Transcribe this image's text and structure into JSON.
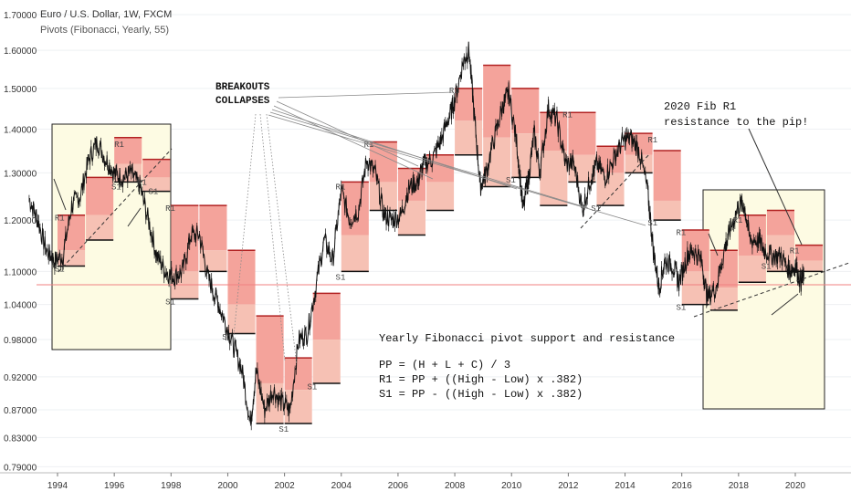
{
  "header": {
    "title": "Euro / U.S. Dollar, 1W, FXCM",
    "indicator": "Pivots (Fibonacci, Yearly, 55)"
  },
  "annotations": {
    "breakouts_line1": "BREAKOUTS",
    "breakouts_line2": "COLLAPSES",
    "fib_r1_line1": "2020 Fib R1",
    "fib_r1_line2": "resistance to the pip!",
    "formula_title": "Yearly Fibonacci pivot support and resistance",
    "formula_pp": "PP = (H + L + C) / 3",
    "formula_r1": "R1 = PP + ((High - Low) x .382)",
    "formula_s1": "S1 = PP - ((High - Low) x .382)"
  },
  "colors": {
    "resistance_fill": "#f4a39b",
    "support_fill": "#f6c1b4",
    "highlight_box": "#fdfbe3",
    "price_line": "#111111",
    "current_price_line": "#f08080"
  },
  "chart_data": {
    "type": "line",
    "title": "Euro / U.S. Dollar, 1W, FXCM",
    "x_ticks": [
      "1994",
      "1996",
      "1998",
      "2000",
      "2002",
      "2004",
      "2006",
      "2008",
      "2010",
      "2012",
      "2014",
      "2016",
      "2018",
      "2020"
    ],
    "y_ticks": [
      "0.79000",
      "0.83000",
      "0.87000",
      "0.92000",
      "0.98000",
      "1.04000",
      "1.10000",
      "1.20000",
      "1.30000",
      "1.40000",
      "1.50000",
      "1.60000",
      "1.70000"
    ],
    "ylim": [
      0.775,
      1.73
    ],
    "xlim": [
      1993.0,
      2021.6
    ],
    "current_price": 1.082,
    "price_path": [
      [
        1993.0,
        1.245
      ],
      [
        1993.3,
        1.2
      ],
      [
        1993.6,
        1.14
      ],
      [
        1993.9,
        1.12
      ],
      [
        1994.2,
        1.13
      ],
      [
        1994.5,
        1.23
      ],
      [
        1994.8,
        1.25
      ],
      [
        1995.1,
        1.33
      ],
      [
        1995.4,
        1.37
      ],
      [
        1995.7,
        1.33
      ],
      [
        1996.0,
        1.3
      ],
      [
        1996.3,
        1.29
      ],
      [
        1996.6,
        1.3
      ],
      [
        1996.9,
        1.27
      ],
      [
        1997.2,
        1.2
      ],
      [
        1997.5,
        1.13
      ],
      [
        1997.8,
        1.1
      ],
      [
        1998.1,
        1.09
      ],
      [
        1998.4,
        1.1
      ],
      [
        1998.7,
        1.17
      ],
      [
        1999.0,
        1.17
      ],
      [
        1999.3,
        1.09
      ],
      [
        1999.6,
        1.05
      ],
      [
        1999.9,
        1.01
      ],
      [
        2000.2,
        0.97
      ],
      [
        2000.5,
        0.93
      ],
      [
        2000.8,
        0.85
      ],
      [
        2001.0,
        0.93
      ],
      [
        2001.3,
        0.87
      ],
      [
        2001.6,
        0.9
      ],
      [
        2001.9,
        0.88
      ],
      [
        2002.2,
        0.87
      ],
      [
        2002.5,
        0.98
      ],
      [
        2002.8,
        0.99
      ],
      [
        2003.1,
        1.07
      ],
      [
        2003.4,
        1.16
      ],
      [
        2003.7,
        1.12
      ],
      [
        2004.0,
        1.26
      ],
      [
        2004.3,
        1.2
      ],
      [
        2004.6,
        1.22
      ],
      [
        2004.9,
        1.33
      ],
      [
        2005.2,
        1.3
      ],
      [
        2005.5,
        1.21
      ],
      [
        2005.8,
        1.2
      ],
      [
        2006.1,
        1.21
      ],
      [
        2006.4,
        1.27
      ],
      [
        2006.7,
        1.28
      ],
      [
        2006.9,
        1.32
      ],
      [
        2007.2,
        1.33
      ],
      [
        2007.5,
        1.37
      ],
      [
        2007.8,
        1.43
      ],
      [
        2008.0,
        1.47
      ],
      [
        2008.3,
        1.57
      ],
      [
        2008.5,
        1.6
      ],
      [
        2008.7,
        1.42
      ],
      [
        2008.9,
        1.27
      ],
      [
        2009.1,
        1.3
      ],
      [
        2009.4,
        1.38
      ],
      [
        2009.7,
        1.46
      ],
      [
        2009.9,
        1.49
      ],
      [
        2010.2,
        1.36
      ],
      [
        2010.4,
        1.22
      ],
      [
        2010.6,
        1.29
      ],
      [
        2010.8,
        1.39
      ],
      [
        2011.0,
        1.3
      ],
      [
        2011.3,
        1.45
      ],
      [
        2011.6,
        1.42
      ],
      [
        2011.9,
        1.32
      ],
      [
        2012.2,
        1.32
      ],
      [
        2012.5,
        1.22
      ],
      [
        2012.8,
        1.29
      ],
      [
        2013.0,
        1.32
      ],
      [
        2013.3,
        1.29
      ],
      [
        2013.6,
        1.33
      ],
      [
        2013.9,
        1.37
      ],
      [
        2014.2,
        1.38
      ],
      [
        2014.5,
        1.35
      ],
      [
        2014.8,
        1.26
      ],
      [
        2015.0,
        1.14
      ],
      [
        2015.2,
        1.07
      ],
      [
        2015.4,
        1.12
      ],
      [
        2015.7,
        1.11
      ],
      [
        2015.9,
        1.08
      ],
      [
        2016.2,
        1.13
      ],
      [
        2016.4,
        1.14
      ],
      [
        2016.7,
        1.12
      ],
      [
        2016.9,
        1.05
      ],
      [
        2017.2,
        1.07
      ],
      [
        2017.5,
        1.14
      ],
      [
        2017.7,
        1.18
      ],
      [
        2018.0,
        1.23
      ],
      [
        2018.2,
        1.23
      ],
      [
        2018.4,
        1.16
      ],
      [
        2018.7,
        1.16
      ],
      [
        2018.9,
        1.14
      ],
      [
        2019.2,
        1.13
      ],
      [
        2019.5,
        1.13
      ],
      [
        2019.8,
        1.1
      ],
      [
        2020.0,
        1.11
      ],
      [
        2020.2,
        1.08
      ],
      [
        2020.3,
        1.09
      ]
    ],
    "pivot_years": [
      {
        "year": 1994,
        "r1": 1.21,
        "pp": 1.14,
        "s1": 1.11
      },
      {
        "year": 1995,
        "r1": 1.29,
        "pp": 1.21,
        "s1": 1.16
      },
      {
        "year": 1996,
        "r1": 1.38,
        "pp": 1.32,
        "s1": 1.28
      },
      {
        "year": 1997,
        "r1": 1.33,
        "pp": 1.29,
        "s1": 1.26
      },
      {
        "year": 1998,
        "r1": 1.23,
        "pp": 1.1,
        "s1": 1.05
      },
      {
        "year": 1999,
        "r1": 1.23,
        "pp": 1.14,
        "s1": 1.1
      },
      {
        "year": 2000,
        "r1": 1.14,
        "pp": 1.04,
        "s1": 0.99
      },
      {
        "year": 2001,
        "r1": 1.02,
        "pp": 0.91,
        "s1": 0.85
      },
      {
        "year": 2002,
        "r1": 0.95,
        "pp": 0.9,
        "s1": 0.85
      },
      {
        "year": 2003,
        "r1": 1.06,
        "pp": 0.98,
        "s1": 0.91
      },
      {
        "year": 2004,
        "r1": 1.28,
        "pp": 1.17,
        "s1": 1.1
      },
      {
        "year": 2005,
        "r1": 1.37,
        "pp": 1.28,
        "s1": 1.22
      },
      {
        "year": 2006,
        "r1": 1.31,
        "pp": 1.24,
        "s1": 1.17
      },
      {
        "year": 2007,
        "r1": 1.34,
        "pp": 1.28,
        "s1": 1.22
      },
      {
        "year": 2008,
        "r1": 1.5,
        "pp": 1.42,
        "s1": 1.34
      },
      {
        "year": 2009,
        "r1": 1.56,
        "pp": 1.38,
        "s1": 1.27
      },
      {
        "year": 2010,
        "r1": 1.5,
        "pp": 1.39,
        "s1": 1.29
      },
      {
        "year": 2011,
        "r1": 1.44,
        "pp": 1.35,
        "s1": 1.23
      },
      {
        "year": 2012,
        "r1": 1.44,
        "pp": 1.34,
        "s1": 1.28
      },
      {
        "year": 2013,
        "r1": 1.36,
        "pp": 1.3,
        "s1": 1.23
      },
      {
        "year": 2014,
        "r1": 1.39,
        "pp": 1.34,
        "s1": 1.3
      },
      {
        "year": 2015,
        "r1": 1.35,
        "pp": 1.24,
        "s1": 1.2
      },
      {
        "year": 2016,
        "r1": 1.18,
        "pp": 1.1,
        "s1": 1.04
      },
      {
        "year": 2017,
        "r1": 1.14,
        "pp": 1.07,
        "s1": 1.03
      },
      {
        "year": 2018,
        "r1": 1.21,
        "pp": 1.13,
        "s1": 1.08
      },
      {
        "year": 2019,
        "r1": 1.22,
        "pp": 1.17,
        "s1": 1.1
      },
      {
        "year": 2020,
        "r1": 1.15,
        "pp": 1.12,
        "s1": 1.1
      }
    ],
    "level_labels": [
      {
        "text": "R1",
        "year": 1993.9,
        "value": 1.205
      },
      {
        "text": "S1",
        "year": 1993.9,
        "value": 1.105
      },
      {
        "text": "R1",
        "year": 1996.0,
        "value": 1.365
      },
      {
        "text": "S1",
        "year": 1995.9,
        "value": 1.27
      },
      {
        "text": "R1",
        "year": 1996.8,
        "value": 1.28
      },
      {
        "text": "S1",
        "year": 1997.2,
        "value": 1.26
      },
      {
        "text": "R1",
        "year": 1997.8,
        "value": 1.225
      },
      {
        "text": "S1",
        "year": 1997.8,
        "value": 1.045
      },
      {
        "text": "S1",
        "year": 1999.8,
        "value": 0.985
      },
      {
        "text": "S1",
        "year": 2001.8,
        "value": 0.842
      },
      {
        "text": "S1",
        "year": 2002.8,
        "value": 0.905
      },
      {
        "text": "R1",
        "year": 2003.8,
        "value": 1.27
      },
      {
        "text": "S1",
        "year": 2003.8,
        "value": 1.09
      },
      {
        "text": "R1",
        "year": 2004.8,
        "value": 1.365
      },
      {
        "text": "R1",
        "year": 2007.8,
        "value": 1.495
      },
      {
        "text": "S1",
        "year": 2009.8,
        "value": 1.285
      },
      {
        "text": "R1",
        "year": 2011.8,
        "value": 1.435
      },
      {
        "text": "R1",
        "year": 2014.8,
        "value": 1.375
      },
      {
        "text": "S1",
        "year": 2012.8,
        "value": 1.225
      },
      {
        "text": "S1",
        "year": 2014.8,
        "value": 1.195
      },
      {
        "text": "R1",
        "year": 2015.8,
        "value": 1.175
      },
      {
        "text": "S1",
        "year": 2015.8,
        "value": 1.035
      },
      {
        "text": "R1",
        "year": 2017.8,
        "value": 1.2
      },
      {
        "text": "S1",
        "year": 2018.8,
        "value": 1.11
      },
      {
        "text": "R1",
        "year": 2019.8,
        "value": 1.14
      }
    ]
  }
}
